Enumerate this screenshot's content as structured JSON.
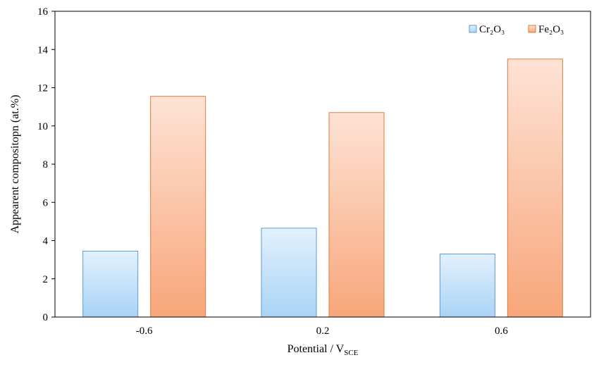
{
  "chart_data": {
    "type": "bar",
    "categories": [
      "-0.6",
      "0.2",
      "0.6"
    ],
    "series": [
      {
        "name": "Cr₂O₃",
        "values": [
          3.45,
          4.65,
          3.3
        ],
        "color": "#a9d3f5",
        "color_light": "#e3f1fd",
        "stroke": "#5b9bd5"
      },
      {
        "name": "Fe₂O₃",
        "values": [
          11.55,
          10.7,
          13.5
        ],
        "color": "#f8a67a",
        "color_light": "#fde3d6",
        "stroke": "#e07b3a"
      }
    ],
    "xlabel_main": "Potential / V",
    "xlabel_sub": "SCE",
    "ylabel": "Appearent compositopn (at.%)",
    "ylim": [
      0,
      16
    ],
    "yticks": [
      "0",
      "2",
      "4",
      "6",
      "8",
      "10",
      "12",
      "14",
      "16"
    ],
    "legend": "top-right",
    "grid": false
  }
}
